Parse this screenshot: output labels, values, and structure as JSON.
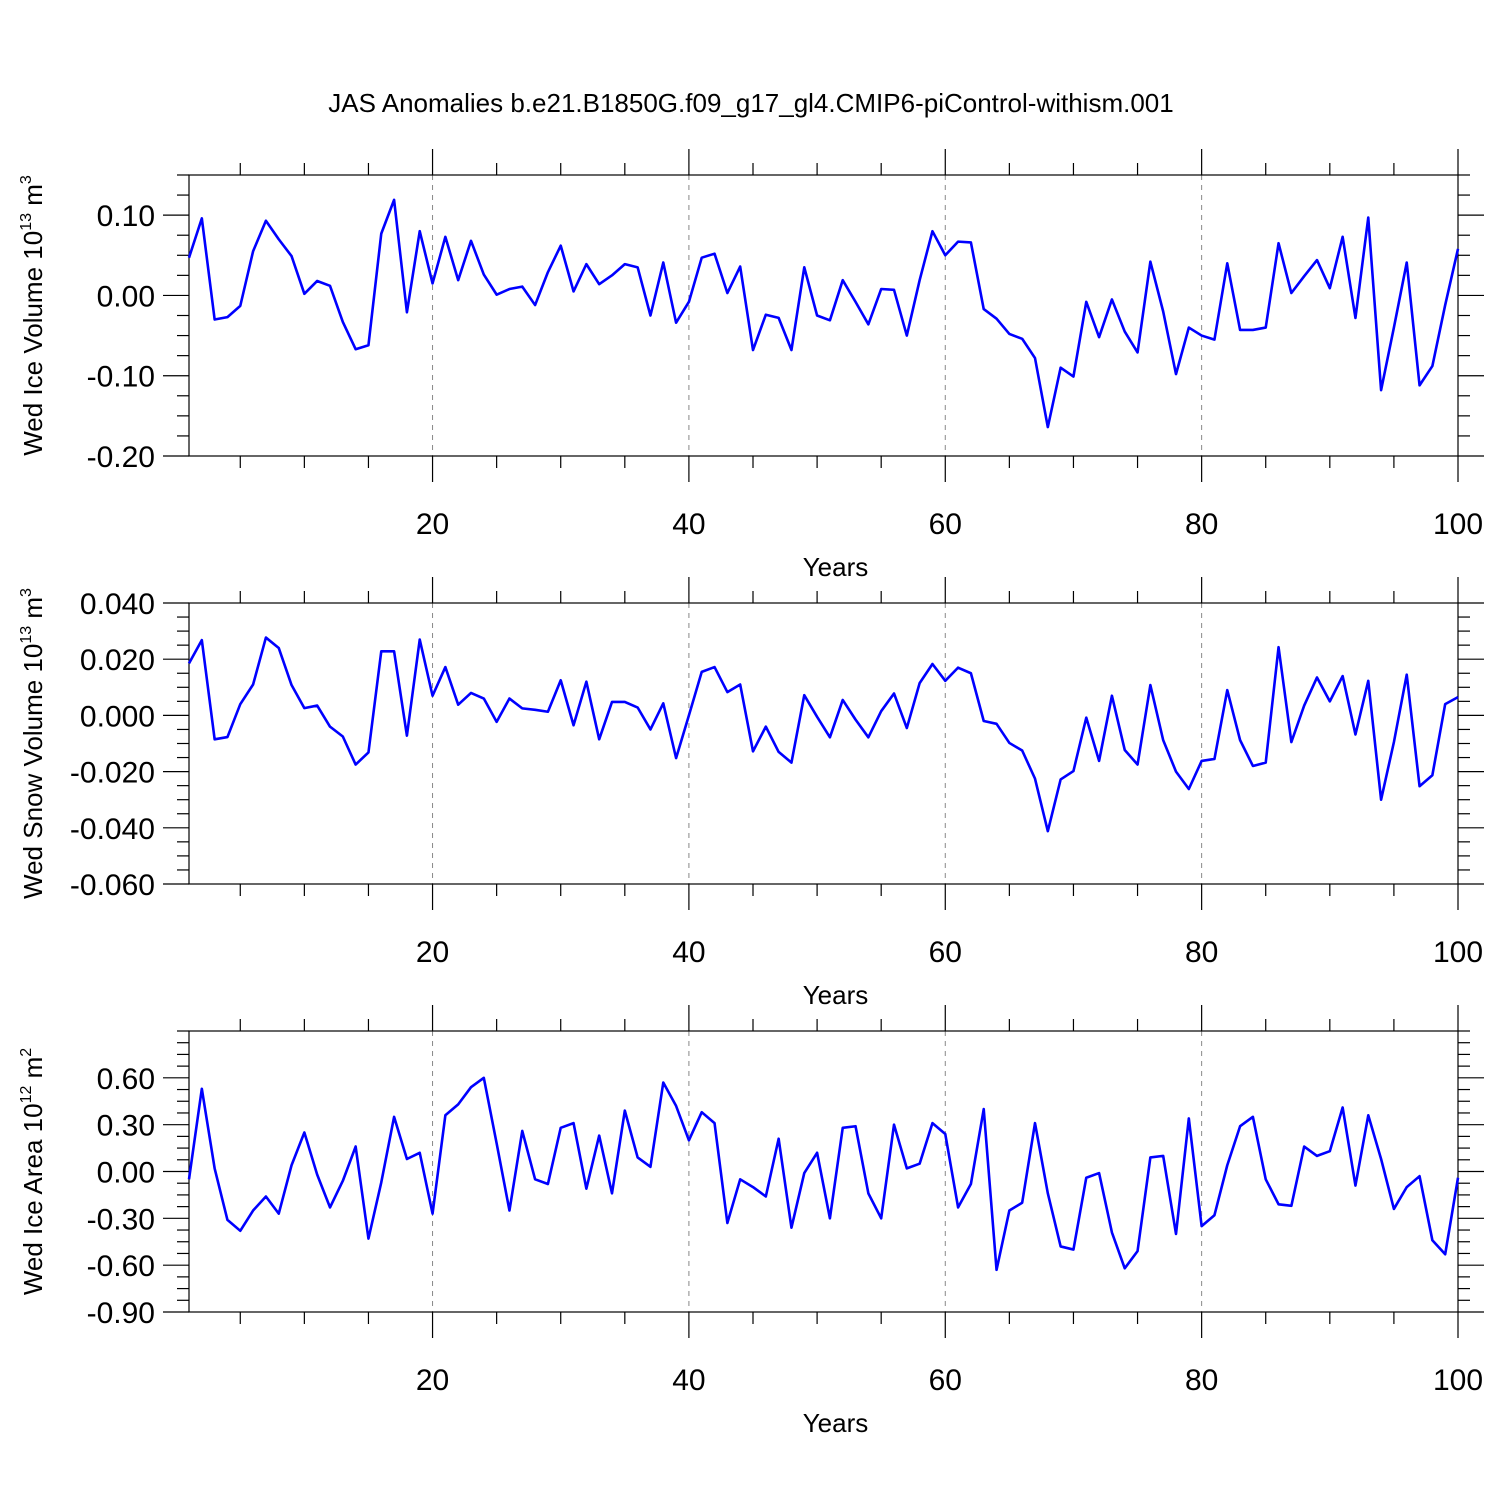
{
  "figure_title": "JAS Anomalies b.e21.B1850G.f09_g17_gl4.CMIP6-piControl-withism.001",
  "line_color": "#0000ff",
  "chart_data": [
    {
      "type": "line",
      "title": "",
      "xlabel": "Years",
      "ylabel": {
        "prefix": "Wed Ice Volume 10",
        "exponent": "13",
        "middle": " m",
        "unit_exponent": "3"
      },
      "xlim": [
        1,
        100
      ],
      "ylim": [
        -0.2,
        0.15
      ],
      "xticks": [
        20,
        40,
        60,
        80,
        100
      ],
      "xtick_labels": [
        "20",
        "40",
        "60",
        "80",
        "100"
      ],
      "yticks": [
        -0.2,
        -0.1,
        0.0,
        0.1
      ],
      "ytick_labels": [
        "-0.20",
        "-0.10",
        "0.00",
        "0.10"
      ],
      "grid": "dashed vertical lines at x = 20, 40, 60, 80",
      "series": [
        {
          "x": [
            1,
            2,
            3,
            4,
            5,
            6,
            7,
            8,
            9,
            10,
            11,
            12,
            13,
            14,
            15,
            16,
            17,
            18,
            19,
            20,
            21,
            22,
            23,
            24,
            25,
            26,
            27,
            28,
            29,
            30,
            31,
            32,
            33,
            34,
            35,
            36,
            37,
            38,
            39,
            40,
            41,
            42,
            43,
            44,
            45,
            46,
            47,
            48,
            49,
            50,
            51,
            52,
            53,
            54,
            55,
            56,
            57,
            58,
            59,
            60,
            61,
            62,
            63,
            64,
            65,
            66,
            67,
            68,
            69,
            70,
            71,
            72,
            73,
            74,
            75,
            76,
            77,
            78,
            79,
            80,
            81,
            82,
            83,
            84,
            85,
            86,
            87,
            88,
            89,
            90,
            91,
            92,
            93,
            94,
            95,
            96,
            97,
            98,
            99,
            100
          ],
          "values": [
            0.047,
            0.096,
            -0.03,
            -0.027,
            -0.013,
            0.055,
            0.093,
            0.07,
            0.049,
            0.002,
            0.018,
            0.012,
            -0.033,
            -0.067,
            -0.062,
            0.077,
            0.119,
            -0.021,
            0.08,
            0.015,
            0.073,
            0.019,
            0.068,
            0.026,
            0.001,
            0.008,
            0.011,
            -0.012,
            0.029,
            0.062,
            0.005,
            0.039,
            0.014,
            0.025,
            0.039,
            0.035,
            -0.025,
            0.041,
            -0.034,
            -0.008,
            0.047,
            0.052,
            0.003,
            0.036,
            -0.068,
            -0.024,
            -0.028,
            -0.068,
            0.035,
            -0.025,
            -0.031,
            0.019,
            -0.008,
            -0.036,
            0.008,
            0.007,
            -0.05,
            0.019,
            0.08,
            0.05,
            0.067,
            0.066,
            -0.017,
            -0.029,
            -0.048,
            -0.054,
            -0.078,
            -0.164,
            -0.09,
            -0.101,
            -0.008,
            -0.052,
            -0.005,
            -0.045,
            -0.071,
            0.042,
            -0.02,
            -0.098,
            -0.04,
            -0.05,
            -0.055,
            0.04,
            -0.043,
            -0.043,
            -0.04,
            0.065,
            0.003,
            0.024,
            0.044,
            0.009,
            0.073,
            -0.028,
            0.097,
            -0.118,
            -0.04,
            0.041,
            -0.112,
            -0.088,
            -0.012,
            0.058
          ]
        }
      ]
    },
    {
      "type": "line",
      "title": "",
      "xlabel": "Years",
      "ylabel": {
        "prefix": "Wed Snow Volume 10",
        "exponent": "13",
        "middle": " m",
        "unit_exponent": "3"
      },
      "xlim": [
        1,
        100
      ],
      "ylim": [
        -0.06,
        0.04
      ],
      "xticks": [
        20,
        40,
        60,
        80,
        100
      ],
      "xtick_labels": [
        "20",
        "40",
        "60",
        "80",
        "100"
      ],
      "yticks": [
        -0.06,
        -0.04,
        -0.02,
        0.0,
        0.02,
        0.04
      ],
      "ytick_labels": [
        "-0.060",
        "-0.040",
        "-0.020",
        "0.000",
        "0.020",
        "0.040"
      ],
      "grid": "dashed vertical lines at x = 20, 40, 60, 80",
      "series": [
        {
          "x": [
            1,
            2,
            3,
            4,
            5,
            6,
            7,
            8,
            9,
            10,
            11,
            12,
            13,
            14,
            15,
            16,
            17,
            18,
            19,
            20,
            21,
            22,
            23,
            24,
            25,
            26,
            27,
            28,
            29,
            30,
            31,
            32,
            33,
            34,
            35,
            36,
            37,
            38,
            39,
            40,
            41,
            42,
            43,
            44,
            45,
            46,
            47,
            48,
            49,
            50,
            51,
            52,
            53,
            54,
            55,
            56,
            57,
            58,
            59,
            60,
            61,
            62,
            63,
            64,
            65,
            66,
            67,
            68,
            69,
            70,
            71,
            72,
            73,
            74,
            75,
            76,
            77,
            78,
            79,
            80,
            81,
            82,
            83,
            84,
            85,
            86,
            87,
            88,
            89,
            90,
            91,
            92,
            93,
            94,
            95,
            96,
            97,
            98,
            99,
            100
          ],
          "values": [
            0.0185,
            0.0268,
            -0.0085,
            -0.0077,
            0.004,
            0.011,
            0.0277,
            0.024,
            0.0108,
            0.0026,
            0.0035,
            -0.004,
            -0.0075,
            -0.0175,
            -0.0132,
            0.0228,
            0.0228,
            -0.0072,
            0.027,
            0.007,
            0.0172,
            0.0038,
            0.008,
            0.006,
            -0.0023,
            0.006,
            0.0025,
            0.002,
            0.0013,
            0.0125,
            -0.0035,
            0.012,
            -0.0085,
            0.0048,
            0.0048,
            0.0028,
            -0.005,
            0.0043,
            -0.0152,
            0.0,
            0.0155,
            0.0172,
            0.0083,
            0.011,
            -0.0128,
            -0.004,
            -0.013,
            -0.0168,
            0.0072,
            -0.0005,
            -0.0078,
            0.0055,
            -0.0015,
            -0.0078,
            0.0015,
            0.0078,
            -0.0045,
            0.0115,
            0.0183,
            0.0123,
            0.017,
            0.015,
            -0.002,
            -0.003,
            -0.0098,
            -0.0125,
            -0.0225,
            -0.0412,
            -0.0228,
            -0.0198,
            -0.0008,
            -0.0162,
            0.007,
            -0.0123,
            -0.0175,
            0.0108,
            -0.0088,
            -0.02,
            -0.0262,
            -0.0162,
            -0.0155,
            0.009,
            -0.0088,
            -0.018,
            -0.0168,
            0.0243,
            -0.0095,
            0.0035,
            0.0135,
            0.005,
            0.014,
            -0.0068,
            0.0123,
            -0.03,
            -0.0095,
            0.0145,
            -0.0252,
            -0.0213,
            0.004,
            0.0065
          ]
        }
      ]
    },
    {
      "type": "line",
      "title": "",
      "xlabel": "Years",
      "ylabel": {
        "prefix": "Wed Ice Area 10",
        "exponent": "12",
        "middle": " m",
        "unit_exponent": "2"
      },
      "xlim": [
        1,
        100
      ],
      "ylim": [
        -0.9,
        0.9
      ],
      "xticks": [
        20,
        40,
        60,
        80,
        100
      ],
      "xtick_labels": [
        "20",
        "40",
        "60",
        "80",
        "100"
      ],
      "yticks": [
        -0.9,
        -0.6,
        -0.3,
        0.0,
        0.3,
        0.6
      ],
      "ytick_labels": [
        "-0.90",
        "-0.60",
        "-0.30",
        "0.00",
        "0.30",
        "0.60"
      ],
      "grid": "dashed vertical lines at x = 20, 40, 60, 80",
      "series": [
        {
          "x": [
            1,
            2,
            3,
            4,
            5,
            6,
            7,
            8,
            9,
            10,
            11,
            12,
            13,
            14,
            15,
            16,
            17,
            18,
            19,
            20,
            21,
            22,
            23,
            24,
            25,
            26,
            27,
            28,
            29,
            30,
            31,
            32,
            33,
            34,
            35,
            36,
            37,
            38,
            39,
            40,
            41,
            42,
            43,
            44,
            45,
            46,
            47,
            48,
            49,
            50,
            51,
            52,
            53,
            54,
            55,
            56,
            57,
            58,
            59,
            60,
            61,
            62,
            63,
            64,
            65,
            66,
            67,
            68,
            69,
            70,
            71,
            72,
            73,
            74,
            75,
            76,
            77,
            78,
            79,
            80,
            81,
            82,
            83,
            84,
            85,
            86,
            87,
            88,
            89,
            90,
            91,
            92,
            93,
            94,
            95,
            96,
            97,
            98,
            99,
            100
          ],
          "values": [
            -0.05,
            0.53,
            0.02,
            -0.31,
            -0.38,
            -0.25,
            -0.16,
            -0.27,
            0.04,
            0.25,
            -0.02,
            -0.23,
            -0.06,
            0.16,
            -0.43,
            -0.07,
            0.35,
            0.08,
            0.12,
            -0.27,
            0.36,
            0.43,
            0.54,
            0.6,
            0.18,
            -0.25,
            0.26,
            -0.05,
            -0.08,
            0.28,
            0.31,
            -0.11,
            0.23,
            -0.14,
            0.39,
            0.09,
            0.03,
            0.57,
            0.42,
            0.2,
            0.38,
            0.31,
            -0.33,
            -0.05,
            -0.1,
            -0.16,
            0.21,
            -0.36,
            -0.01,
            0.12,
            -0.3,
            0.28,
            0.29,
            -0.14,
            -0.3,
            0.3,
            0.02,
            0.05,
            0.31,
            0.24,
            -0.23,
            -0.08,
            0.4,
            -0.63,
            -0.25,
            -0.2,
            0.31,
            -0.14,
            -0.48,
            -0.5,
            -0.04,
            -0.01,
            -0.39,
            -0.62,
            -0.51,
            0.09,
            0.1,
            -0.4,
            0.34,
            -0.35,
            -0.28,
            0.04,
            0.29,
            0.35,
            -0.05,
            -0.21,
            -0.22,
            0.16,
            0.1,
            0.13,
            0.41,
            -0.09,
            0.36,
            0.08,
            -0.24,
            -0.1,
            -0.03,
            -0.44,
            -0.53,
            -0.04
          ]
        }
      ]
    }
  ]
}
